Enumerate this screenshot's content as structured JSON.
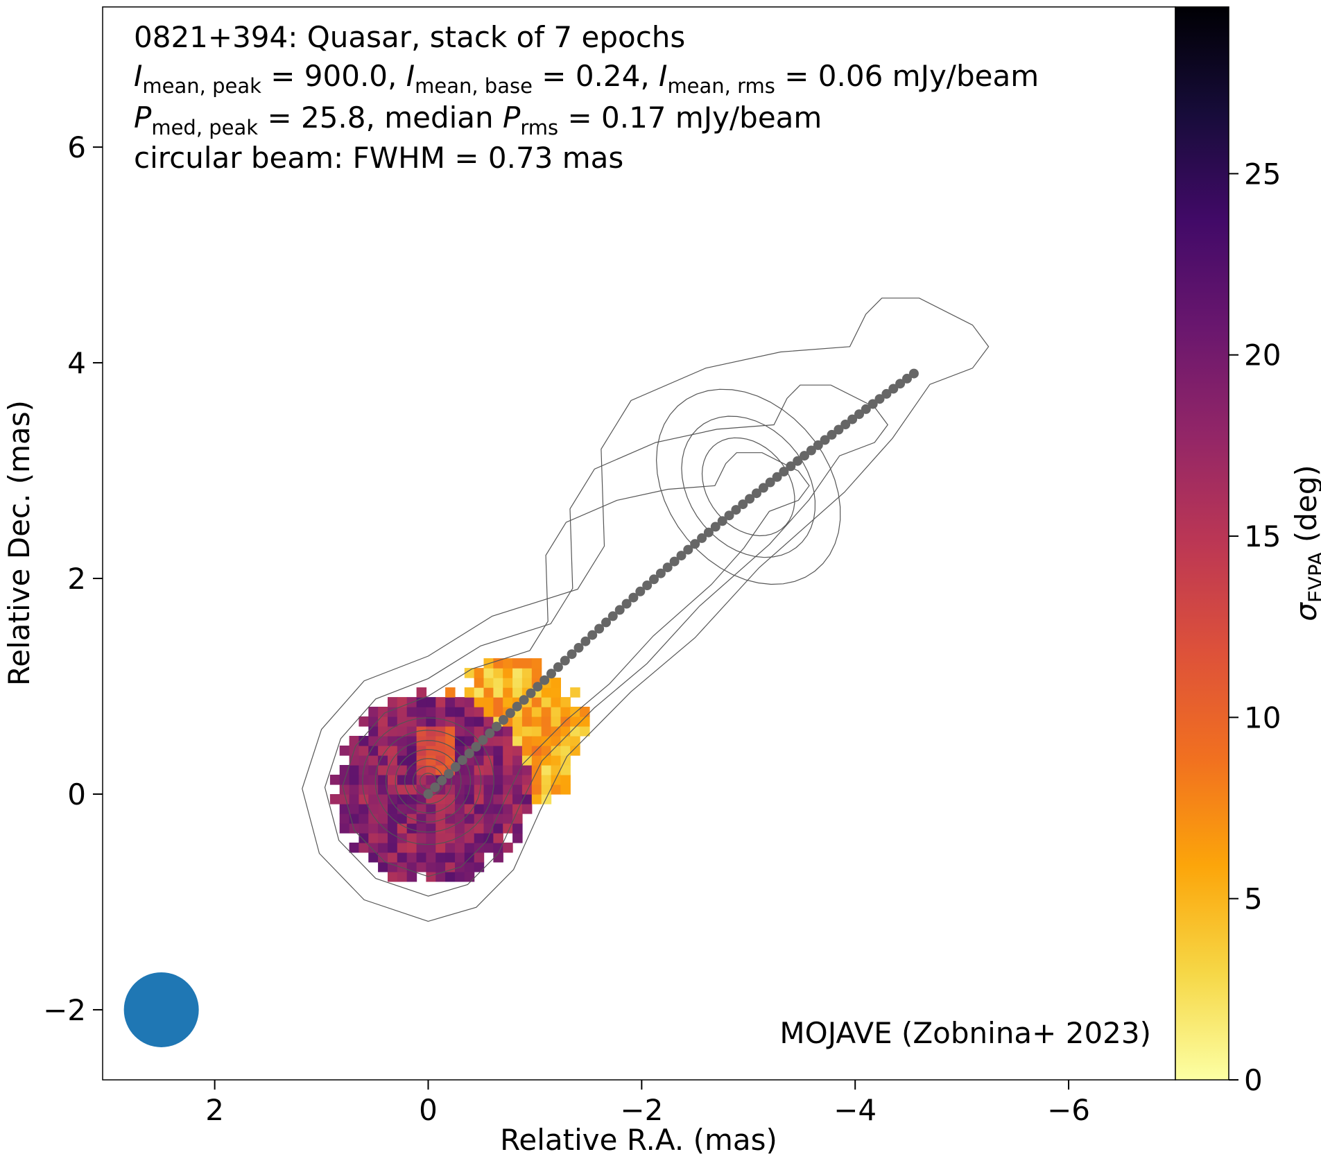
{
  "chart_data": {
    "type": "heatmap",
    "title_lines": [
      "0821+394: Quasar, stack of 7 epochs",
      "I_mean,peak = 900.0, I_mean,base = 0.24, I_mean,rms = 0.06 mJy/beam",
      "P_med,peak = 25.8, median P_rms = 0.17 mJy/beam",
      "circular beam: FWHM = 0.73 mas"
    ],
    "title": {
      "line1": "0821+394: Quasar, stack of 7 epochs",
      "line2": {
        "i_sym": "I",
        "sub_peak": "mean, peak",
        "peak_val": " = 900.0, ",
        "sub_base": "mean, base",
        "base_val": " = 0.24, ",
        "sub_rms": "mean, rms",
        "rms_val": " = 0.06 mJy/beam"
      },
      "line3": {
        "p_sym": "P",
        "sub_peak": "med, peak",
        "peak_val": " = 25.8, median ",
        "sub_rms": "rms",
        "rms_val": " = 0.17 mJy/beam"
      },
      "line4": "circular beam: FWHM = 0.73 mas"
    },
    "credit": "MOJAVE (Zobnina+ 2023)",
    "xlabel": "Relative R.A. (mas)",
    "ylabel": "Relative Dec. (mas)",
    "xlim": [
      3.05,
      -7.0
    ],
    "ylim": [
      -2.65,
      7.3
    ],
    "xticks": [
      2,
      0,
      -2,
      -4,
      -6
    ],
    "xtick_labels": [
      "2",
      "0",
      "−2",
      "−4",
      "−6"
    ],
    "yticks": [
      -2,
      0,
      2,
      4,
      6
    ],
    "ytick_labels": [
      "−2",
      "0",
      "2",
      "4",
      "6"
    ],
    "colorbar": {
      "label_sym": "σ",
      "label_sub": "EVPA",
      "label_unit": " (deg)",
      "range": [
        0,
        29.6
      ],
      "ticks": [
        0,
        5,
        10,
        15,
        20,
        25
      ],
      "tick_labels": [
        "0",
        "5",
        "10",
        "15",
        "20",
        "25"
      ],
      "colormap": "inferno_r",
      "stops": [
        "#fcffa4",
        "#f6d746",
        "#fca50a",
        "#f17020",
        "#dd513a",
        "#bc3754",
        "#932667",
        "#6a176e",
        "#420a68",
        "#170c3a",
        "#000004"
      ]
    },
    "beam": {
      "ra": 2.5,
      "dec": -2.0,
      "fwhm": 0.73,
      "color": "#1f77b4"
    },
    "ridgeline": {
      "color": "#666666",
      "x": [
        0.0,
        -4.55
      ],
      "y": [
        0.0,
        3.9
      ],
      "n_points": 72
    },
    "contour_color": "#555555",
    "contour_levels_mas_scaled": [
      1.0,
      0.82,
      0.68,
      0.56,
      0.45,
      0.36,
      0.28,
      0.2,
      0.13,
      0.07
    ],
    "heatmap_region": {
      "core_center": [
        0.0,
        0.1
      ],
      "core_radius": 0.95,
      "knot_center": [
        -0.75,
        0.6
      ],
      "knot_radius": 0.72,
      "cell_size": 0.09,
      "core_value_range": [
        11,
        22
      ],
      "knot_value_range": [
        2,
        9
      ]
    }
  }
}
